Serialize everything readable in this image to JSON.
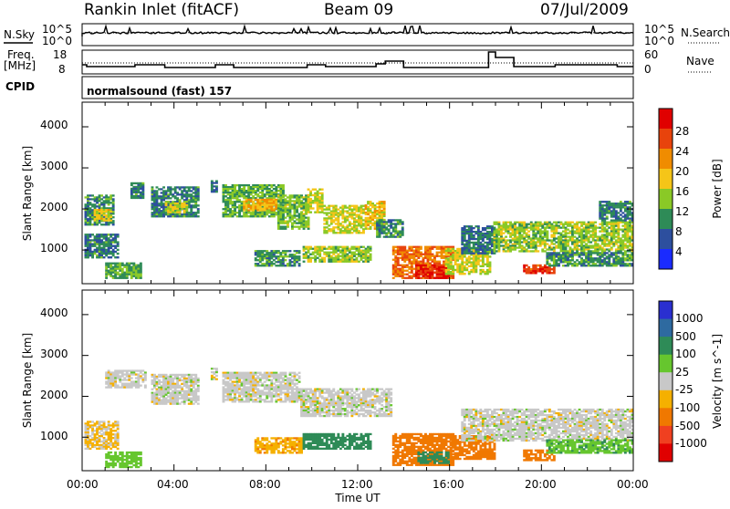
{
  "header": {
    "station": "Rankin Inlet (fitACF)",
    "beam": "Beam 09",
    "date": "07/Jul/2009"
  },
  "top_panels": {
    "nsky_label": "N.Sky",
    "nsearch_label": "N.Search",
    "log_top": "10^5",
    "log_bottom": "10^0",
    "freq_label_1": "Freq.",
    "freq_label_2": "[MHz]",
    "freq_ticks": [
      "18",
      "8"
    ],
    "nave_label": "Nave",
    "nave_ticks": [
      "60",
      "0"
    ],
    "cpid_label": "CPID",
    "cpid_text": "normalsound (fast) 157"
  },
  "axes": {
    "ylabel": "Slant Range [km]",
    "yticks": [
      "1000",
      "2000",
      "3000",
      "4000"
    ],
    "xlabel": "Time UT",
    "xticks": [
      "00:00",
      "04:00",
      "08:00",
      "12:00",
      "16:00",
      "20:00",
      "00:00"
    ]
  },
  "colorbars": {
    "power": {
      "label": "Power [dB]",
      "ticks": [
        "4",
        "8",
        "12",
        "16",
        "20",
        "24",
        "28"
      ],
      "colors": [
        "#1a2bff",
        "#2d4f9e",
        "#2e8b57",
        "#8ac926",
        "#f5c518",
        "#f08c00",
        "#e8430c",
        "#e00000"
      ]
    },
    "velocity": {
      "label": "Velocity [m s^-1]",
      "ticks": [
        "1000",
        "500",
        "100",
        "25",
        "-25",
        "-100",
        "-500",
        "-1000"
      ],
      "colors": [
        "#2a2fd0",
        "#2e6aa0",
        "#2e8b57",
        "#66c62e",
        "#c8c8c8",
        "#f5b000",
        "#f07800",
        "#f04020",
        "#e00000"
      ]
    }
  },
  "chart_data": [
    {
      "type": "heatmap",
      "title": "",
      "quantity": "Power [dB]",
      "xlabel": "Time UT",
      "ylabel": "Slant Range [km]",
      "xlim_hours": [
        0,
        24
      ],
      "ylim": [
        180,
        4600
      ],
      "clim": [
        0,
        30
      ],
      "regions": [
        {
          "t0": 0.1,
          "t1": 1.4,
          "r0": 1600,
          "r1": 2350,
          "value": 10
        },
        {
          "t0": 0.1,
          "t1": 1.6,
          "r0": 800,
          "r1": 1400,
          "value": 9
        },
        {
          "t0": 0.5,
          "t1": 1.3,
          "r0": 1700,
          "r1": 2000,
          "value": 17
        },
        {
          "t0": 1.0,
          "t1": 2.6,
          "r0": 300,
          "r1": 700,
          "value": 12
        },
        {
          "t0": 2.1,
          "t1": 2.7,
          "r0": 2250,
          "r1": 2650,
          "value": 9
        },
        {
          "t0": 3.0,
          "t1": 5.1,
          "r0": 1800,
          "r1": 2550,
          "value": 9
        },
        {
          "t0": 3.6,
          "t1": 4.6,
          "r0": 1900,
          "r1": 2200,
          "value": 16
        },
        {
          "t0": 5.6,
          "t1": 5.9,
          "r0": 2400,
          "r1": 2700,
          "value": 8
        },
        {
          "t0": 6.1,
          "t1": 8.8,
          "r0": 1800,
          "r1": 2600,
          "value": 12
        },
        {
          "t0": 7.0,
          "t1": 8.5,
          "r0": 1950,
          "r1": 2250,
          "value": 20
        },
        {
          "t0": 8.5,
          "t1": 9.9,
          "r0": 1500,
          "r1": 2350,
          "value": 13
        },
        {
          "t0": 7.5,
          "t1": 9.5,
          "r0": 600,
          "r1": 1000,
          "value": 10
        },
        {
          "t0": 9.8,
          "t1": 10.5,
          "r0": 1900,
          "r1": 2500,
          "value": 16
        },
        {
          "t0": 10.5,
          "t1": 12.3,
          "r0": 1400,
          "r1": 2100,
          "value": 16
        },
        {
          "t0": 9.6,
          "t1": 12.6,
          "r0": 700,
          "r1": 1100,
          "value": 14
        },
        {
          "t0": 12.3,
          "t1": 13.2,
          "r0": 1500,
          "r1": 2200,
          "value": 18
        },
        {
          "t0": 12.8,
          "t1": 14.0,
          "r0": 1300,
          "r1": 1750,
          "value": 10
        },
        {
          "t0": 13.5,
          "t1": 16.2,
          "r0": 300,
          "r1": 1100,
          "value": 24
        },
        {
          "t0": 14.5,
          "t1": 16.0,
          "r0": 300,
          "r1": 650,
          "value": 29
        },
        {
          "t0": 15.8,
          "t1": 17.8,
          "r0": 400,
          "r1": 1050,
          "value": 16
        },
        {
          "t0": 16.5,
          "t1": 18.0,
          "r0": 900,
          "r1": 1600,
          "value": 8
        },
        {
          "t0": 17.9,
          "t1": 24.0,
          "r0": 950,
          "r1": 1700,
          "value": 14
        },
        {
          "t0": 19.2,
          "t1": 20.6,
          "r0": 420,
          "r1": 650,
          "value": 27
        },
        {
          "t0": 20.2,
          "t1": 24.0,
          "r0": 600,
          "r1": 950,
          "value": 10
        },
        {
          "t0": 22.5,
          "t1": 24.0,
          "r0": 1700,
          "r1": 2200,
          "value": 9
        }
      ]
    },
    {
      "type": "heatmap",
      "title": "",
      "quantity": "Velocity [m s^-1]",
      "xlabel": "Time UT",
      "ylabel": "Slant Range [km]",
      "xlim_hours": [
        0,
        24
      ],
      "ylim": [
        180,
        4600
      ],
      "clim": [
        -1000,
        1000
      ],
      "regions": [
        {
          "t0": 0.1,
          "t1": 1.6,
          "r0": 700,
          "r1": 1400,
          "value": -30
        },
        {
          "t0": 1.0,
          "t1": 2.6,
          "r0": 250,
          "r1": 650,
          "value": 60
        },
        {
          "t0": 1.0,
          "t1": 2.8,
          "r0": 2200,
          "r1": 2650,
          "value": 0
        },
        {
          "t0": 3.0,
          "t1": 5.1,
          "r0": 1800,
          "r1": 2550,
          "value": 0
        },
        {
          "t0": 5.6,
          "t1": 5.9,
          "r0": 2400,
          "r1": 2700,
          "value": 0
        },
        {
          "t0": 6.1,
          "t1": 9.5,
          "r0": 1850,
          "r1": 2600,
          "value": 0
        },
        {
          "t0": 7.5,
          "t1": 9.6,
          "r0": 600,
          "r1": 1000,
          "value": -80
        },
        {
          "t0": 9.6,
          "t1": 12.6,
          "r0": 700,
          "r1": 1100,
          "value": 200
        },
        {
          "t0": 9.5,
          "t1": 13.5,
          "r0": 1500,
          "r1": 2200,
          "value": 0
        },
        {
          "t0": 13.5,
          "t1": 16.2,
          "r0": 300,
          "r1": 1100,
          "value": -300
        },
        {
          "t0": 14.6,
          "t1": 16.0,
          "r0": 350,
          "r1": 650,
          "value": 400
        },
        {
          "t0": 16.0,
          "t1": 18.0,
          "r0": 450,
          "r1": 1050,
          "value": -400
        },
        {
          "t0": 16.5,
          "t1": 24.0,
          "r0": 900,
          "r1": 1700,
          "value": 0
        },
        {
          "t0": 19.2,
          "t1": 20.6,
          "r0": 420,
          "r1": 700,
          "value": -450
        },
        {
          "t0": 20.2,
          "t1": 24.0,
          "r0": 600,
          "r1": 950,
          "value": 80
        }
      ]
    }
  ]
}
